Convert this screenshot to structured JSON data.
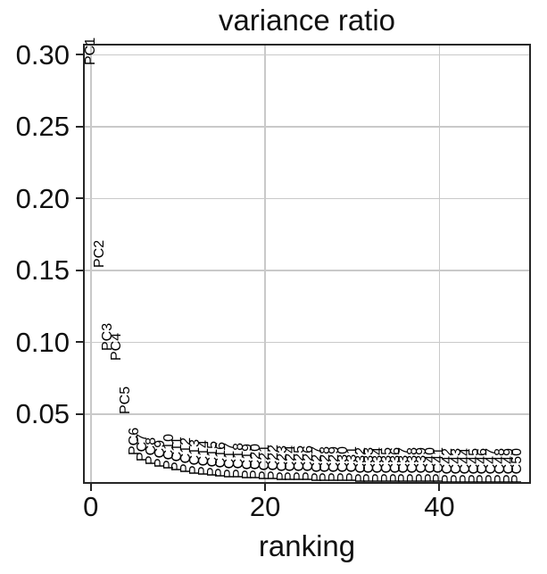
{
  "title": "variance ratio",
  "x_axis": {
    "label": "ranking",
    "tick_labels": [
      "0",
      "20",
      "40"
    ],
    "tick_values": [
      0,
      20,
      40
    ]
  },
  "y_axis": {
    "label": "",
    "tick_labels": [
      "0.30",
      "0.25",
      "0.20",
      "0.15",
      "0.10",
      "0.05"
    ],
    "tick_values": [
      0.3,
      0.25,
      0.2,
      0.15,
      0.1,
      0.05
    ]
  },
  "colors": {
    "text": "#000000",
    "grid": "#c9c9c9",
    "spine": "#262626",
    "background": "#ffffff"
  },
  "chart_data": {
    "type": "scatter",
    "point_style": "rotated-text-labels",
    "title": "variance ratio",
    "xlabel": "ranking",
    "ylabel": "",
    "grid": true,
    "legend": "none",
    "xlim": [
      -0.9,
      50.5
    ],
    "ylim": [
      0.0015,
      0.3077
    ],
    "xticks": [
      0,
      20,
      40
    ],
    "yticks": [
      0.05,
      0.1,
      0.15,
      0.2,
      0.25,
      0.3
    ],
    "x": [
      0,
      1,
      2,
      3,
      4,
      5,
      6,
      7,
      8,
      9,
      10,
      11,
      12,
      13,
      14,
      15,
      16,
      17,
      18,
      19,
      20,
      21,
      22,
      23,
      24,
      25,
      26,
      27,
      28,
      29,
      30,
      31,
      32,
      33,
      34,
      35,
      36,
      37,
      38,
      39,
      40,
      41,
      42,
      43,
      44,
      45,
      46,
      47,
      48,
      49
    ],
    "point_labels": [
      "PC1",
      "PC2",
      "PC3",
      "PC4",
      "PC5",
      "PC6",
      "PC7",
      "PC8",
      "PC9",
      "PC10",
      "PC11",
      "PC12",
      "PC13",
      "PC14",
      "PC15",
      "PC16",
      "PC17",
      "PC18",
      "PC19",
      "PC20",
      "PC21",
      "PC22",
      "PC23",
      "PC24",
      "PC25",
      "PC26",
      "PC27",
      "PC28",
      "PC29",
      "PC30",
      "PC31",
      "PC32",
      "PC33",
      "PC34",
      "PC35",
      "PC36",
      "PC37",
      "PC38",
      "PC39",
      "PC40",
      "PC41",
      "PC42",
      "PC43",
      "PC44",
      "PC45",
      "PC46",
      "PC47",
      "PC48",
      "PC49",
      "PC50"
    ],
    "values": [
      0.293,
      0.152,
      0.094,
      0.087,
      0.05,
      0.0215,
      0.017,
      0.0147,
      0.0128,
      0.0113,
      0.01,
      0.009,
      0.008,
      0.0072,
      0.0065,
      0.0059,
      0.0054,
      0.005,
      0.0046,
      0.0043,
      0.004,
      0.0038,
      0.0036,
      0.0034,
      0.0032,
      0.0031,
      0.0029,
      0.0028,
      0.0027,
      0.0026,
      0.0025,
      0.0024,
      0.0023,
      0.0023,
      0.0022,
      0.0021,
      0.0021,
      0.002,
      0.002,
      0.0019,
      0.0019,
      0.0018,
      0.0018,
      0.0018,
      0.0017,
      0.0017,
      0.0017,
      0.0016,
      0.0016,
      0.0016
    ]
  }
}
